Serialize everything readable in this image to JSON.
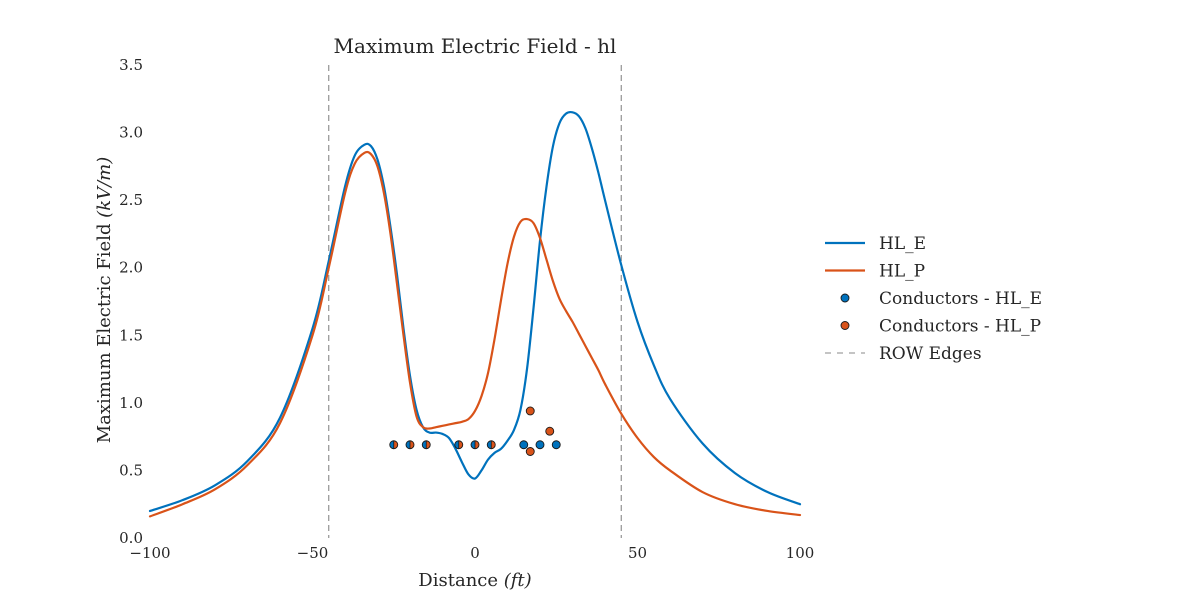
{
  "chart_data": {
    "type": "line",
    "title": "Maximum Electric Field - hl",
    "xlabel_main": "Distance ",
    "xlabel_unit": "(ft)",
    "ylabel_main": "Maximum Electric Field ",
    "ylabel_unit": "(kV/m)",
    "xlim": [
      -100,
      100
    ],
    "ylim": [
      0,
      3.5
    ],
    "x_ticks": [
      -100,
      -50,
      0,
      50,
      100
    ],
    "x_tick_labels": [
      "−100",
      "−50",
      "0",
      "50",
      "100"
    ],
    "y_ticks": [
      0.0,
      0.5,
      1.0,
      1.5,
      2.0,
      2.5,
      3.0,
      3.5
    ],
    "y_tick_labels": [
      "0.0",
      "0.5",
      "1.0",
      "1.5",
      "2.0",
      "2.5",
      "3.0",
      "3.5"
    ],
    "grid": false,
    "legend_position": "right",
    "series": [
      {
        "name": "HL_E",
        "color": "#0072BD",
        "x": [
          -100,
          -90,
          -80,
          -70,
          -60,
          -50,
          -45,
          -40,
          -37,
          -34,
          -32,
          -30,
          -28,
          -26,
          -24,
          -22,
          -20,
          -18,
          -16,
          -14,
          -12,
          -10,
          -8,
          -6,
          -4,
          -2,
          0,
          2,
          4,
          6,
          8,
          10,
          12,
          14,
          16,
          18,
          20,
          22,
          24,
          26,
          28,
          30,
          32,
          34,
          36,
          38,
          40,
          45,
          50,
          55,
          60,
          70,
          80,
          90,
          100
        ],
        "y": [
          0.2,
          0.28,
          0.39,
          0.57,
          0.89,
          1.55,
          2.05,
          2.6,
          2.83,
          2.91,
          2.9,
          2.8,
          2.6,
          2.3,
          1.95,
          1.55,
          1.2,
          0.95,
          0.82,
          0.78,
          0.78,
          0.77,
          0.74,
          0.66,
          0.56,
          0.47,
          0.44,
          0.5,
          0.58,
          0.63,
          0.66,
          0.72,
          0.8,
          0.95,
          1.25,
          1.7,
          2.2,
          2.6,
          2.9,
          3.07,
          3.14,
          3.15,
          3.12,
          3.03,
          2.88,
          2.7,
          2.5,
          2.02,
          1.6,
          1.28,
          1.03,
          0.7,
          0.48,
          0.34,
          0.25
        ]
      },
      {
        "name": "HL_P",
        "color": "#D95319",
        "x": [
          -100,
          -90,
          -80,
          -70,
          -60,
          -50,
          -45,
          -40,
          -37,
          -34,
          -32,
          -30,
          -28,
          -26,
          -24,
          -22,
          -20,
          -18,
          -16,
          -14,
          -12,
          -10,
          -8,
          -6,
          -4,
          -2,
          0,
          2,
          4,
          6,
          8,
          10,
          12,
          14,
          16,
          18,
          20,
          22,
          24,
          26,
          28,
          30,
          32,
          34,
          36,
          38,
          40,
          45,
          50,
          55,
          60,
          70,
          80,
          90,
          100
        ],
        "y": [
          0.16,
          0.25,
          0.36,
          0.54,
          0.85,
          1.5,
          2.0,
          2.55,
          2.77,
          2.85,
          2.84,
          2.75,
          2.55,
          2.25,
          1.88,
          1.5,
          1.15,
          0.9,
          0.82,
          0.81,
          0.82,
          0.83,
          0.84,
          0.85,
          0.86,
          0.88,
          0.94,
          1.05,
          1.22,
          1.47,
          1.76,
          2.03,
          2.23,
          2.34,
          2.36,
          2.33,
          2.22,
          2.06,
          1.9,
          1.77,
          1.68,
          1.6,
          1.51,
          1.42,
          1.33,
          1.24,
          1.14,
          0.92,
          0.74,
          0.6,
          0.5,
          0.34,
          0.25,
          0.2,
          0.17
        ]
      }
    ],
    "scatter_series": [
      {
        "name": "Conductors - HL_E",
        "color": "#0072BD",
        "x": [
          -25,
          -20,
          -15,
          -5,
          0,
          5,
          15,
          20,
          25
        ],
        "y": [
          0.69,
          0.69,
          0.69,
          0.69,
          0.69,
          0.69,
          0.69,
          0.69,
          0.69
        ]
      },
      {
        "name": "Conductors - HL_P",
        "color": "#D95319",
        "x": [
          -25,
          -20,
          -15,
          -5,
          0,
          5,
          17,
          17,
          23
        ],
        "y": [
          0.69,
          0.69,
          0.69,
          0.69,
          0.69,
          0.69,
          0.94,
          0.64,
          0.79
        ]
      }
    ],
    "row_edges": {
      "name": "ROW Edges",
      "color": "#888888",
      "x": [
        -45,
        45
      ]
    }
  }
}
